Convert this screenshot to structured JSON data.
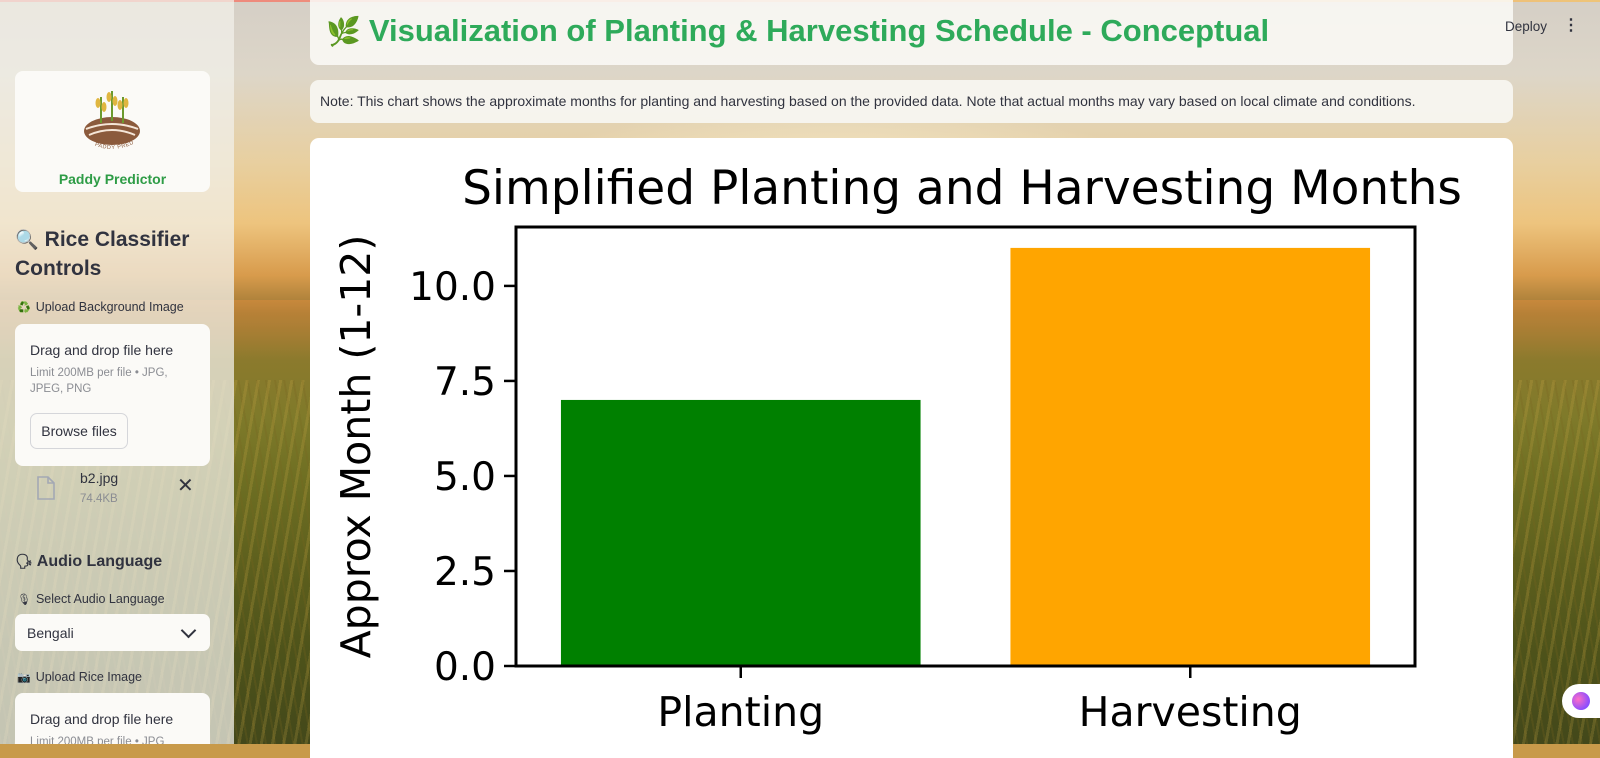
{
  "sidebar": {
    "app_name": "Paddy Predictor",
    "logo_arc_text": "PADDY PREDICTOR",
    "heading": "Rice Classifier Controls",
    "heading_icon": "magnifier-icon",
    "upload_bg_label": "Upload Background Image",
    "upload_bg_dropzone": {
      "title": "Drag and drop file here",
      "limit": "Limit 200MB per file • JPG, JPEG, PNG",
      "button": "Browse files"
    },
    "uploaded_file": {
      "name": "b2.jpg",
      "size": "74.4KB"
    },
    "audio_heading": "Audio Language",
    "audio_select_label": "Select Audio Language",
    "audio_selected": "Bengali",
    "upload_rice_label": "Upload Rice Image",
    "upload_rice_dropzone": {
      "title": "Drag and drop file here",
      "limit": "Limit 200MB per file • JPG"
    }
  },
  "header": {
    "title": "Visualization of Planting & Harvesting Schedule - Conceptual",
    "title_icon": "herb-icon",
    "deploy_label": "Deploy",
    "menu_icon": "kebab-menu-icon"
  },
  "note": "Note: This chart shows the approximate months for planting and harvesting based on the provided data. Note that actual months may vary based on local climate and conditions.",
  "chart_data": {
    "type": "bar",
    "title": "Simplified Planting and Harvesting Months",
    "xlabel": "",
    "ylabel": "Approx Month (1-12)",
    "categories": [
      "Planting",
      "Harvesting"
    ],
    "values": [
      7,
      11
    ],
    "colors": [
      "#008000",
      "#ffa500"
    ],
    "yticks": [
      "0.0",
      "2.5",
      "5.0",
      "7.5",
      "10.0"
    ],
    "ytick_values": [
      0,
      2.5,
      5,
      7.5,
      10
    ],
    "ylim": [
      0,
      11.55
    ],
    "grid": false,
    "legend": "none"
  }
}
